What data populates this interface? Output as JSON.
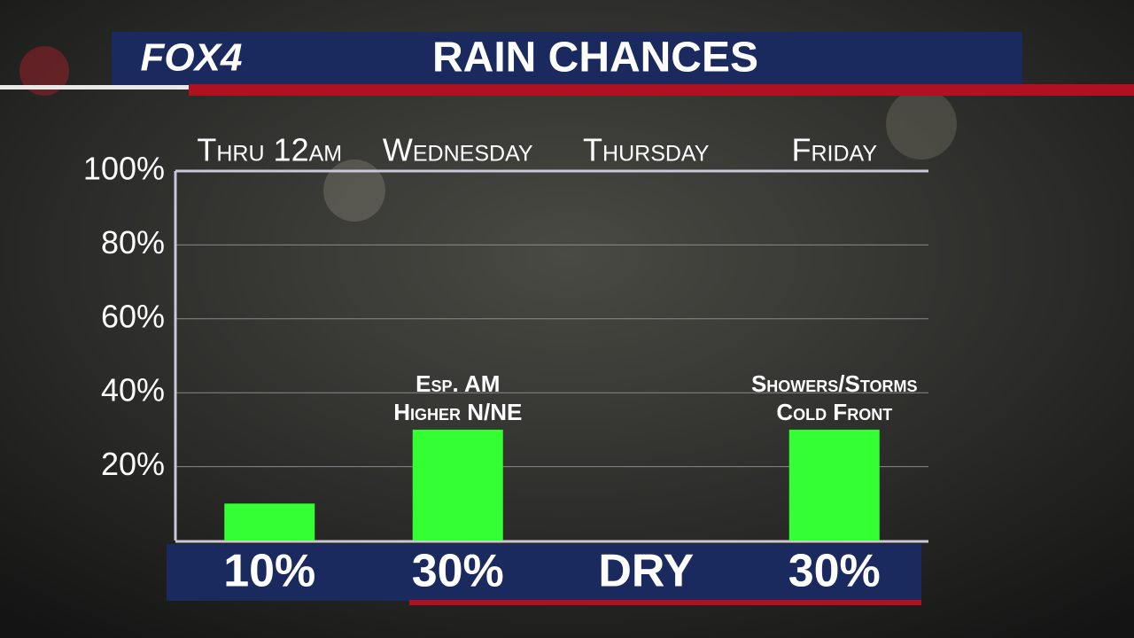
{
  "logo": "FOX4",
  "chart_data": {
    "type": "bar",
    "title": "RAIN CHANCES",
    "categories": [
      "Thru 12am",
      "Wednesday",
      "Thursday",
      "Friday"
    ],
    "values": [
      10,
      30,
      0,
      30
    ],
    "value_labels": [
      "10%",
      "30%",
      "DRY",
      "30%"
    ],
    "color": "#33ff33",
    "ylim": [
      0,
      100
    ],
    "yticks": [
      {
        "value": 20,
        "label": "20%"
      },
      {
        "value": 40,
        "label": "40%"
      },
      {
        "value": 60,
        "label": "60%"
      },
      {
        "value": 80,
        "label": "80%"
      },
      {
        "value": 100,
        "label": "100%"
      }
    ],
    "grid": true,
    "annotations": [
      {
        "category": "Wednesday",
        "lines": [
          "Esp. AM",
          "Higher N/NE"
        ]
      },
      {
        "category": "Friday",
        "lines": [
          "Showers/Storms",
          "Cold Front"
        ]
      }
    ]
  }
}
